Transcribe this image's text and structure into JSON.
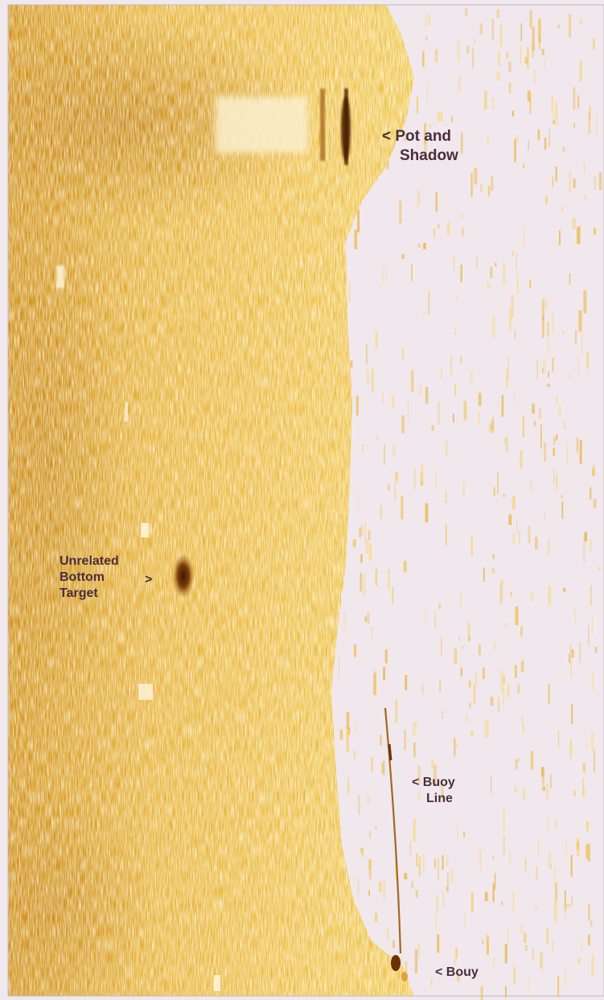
{
  "colors": {
    "background": "#f1e8ee",
    "seabed_light": "#f3cc55",
    "seabed_mid": "#e6a928",
    "seabed_dark": "#c8820a",
    "target_dark": "#5a2a08",
    "annotation_text": "#4a2e3a",
    "border": "#9a9a9a"
  },
  "annotations": {
    "pot_and_shadow": {
      "line1": "< Pot and",
      "line2": "Shadow"
    },
    "unrelated_bottom_target": {
      "line1": "Unrelated",
      "line2": "Bottom",
      "line3": "Target",
      "arrow": ">"
    },
    "buoy_line": {
      "line1": "< Buoy",
      "line2": "Line"
    },
    "bouy": {
      "line1": "< Bouy"
    }
  }
}
